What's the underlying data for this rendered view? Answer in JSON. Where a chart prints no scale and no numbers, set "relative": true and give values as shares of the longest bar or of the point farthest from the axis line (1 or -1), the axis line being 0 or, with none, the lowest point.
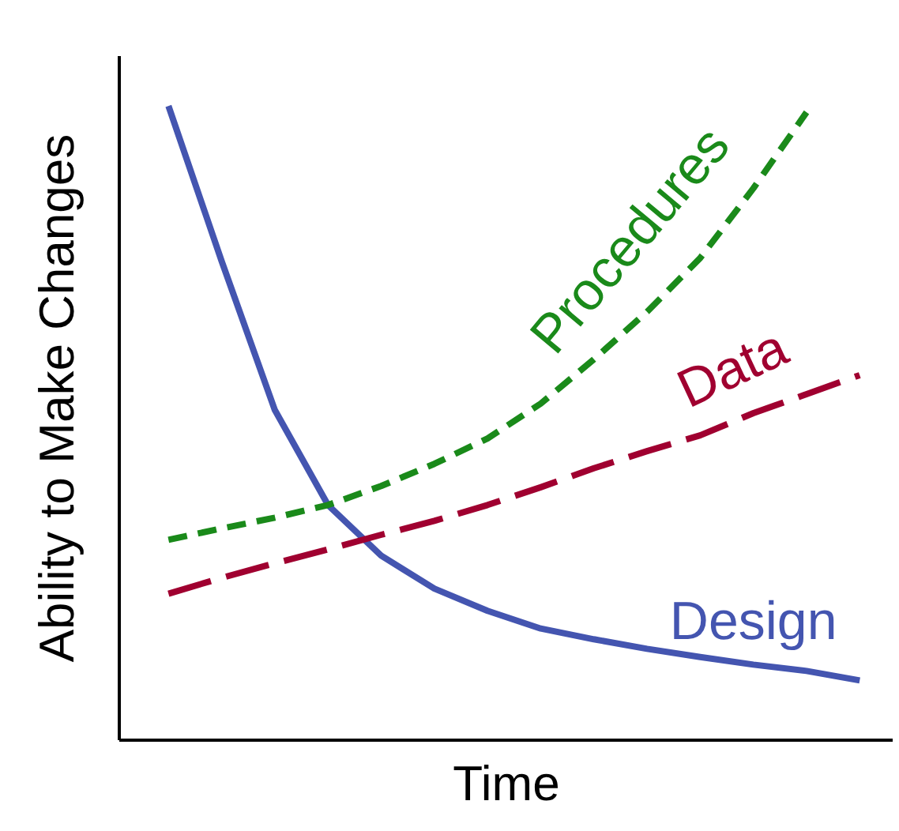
{
  "chart_data": {
    "type": "line",
    "relative": true,
    "xlabel": "Time",
    "ylabel": "Ability to Make Changes",
    "tick_labels": false,
    "grid": false,
    "marker": "none",
    "categories": [
      null,
      null,
      null,
      null,
      null,
      null,
      null,
      null,
      null,
      null,
      null,
      null,
      null,
      null
    ],
    "series": [
      {
        "name": "Design",
        "color": "#4455b0",
        "line_style": "solid",
        "values": [
          1.0,
          0.755,
          0.52,
          0.37,
          0.29,
          0.238,
          0.203,
          0.175,
          0.158,
          0.143,
          0.13,
          0.118,
          0.108,
          0.093
        ]
      },
      {
        "name": "Data",
        "color": "#a00030",
        "line_style": "dashed",
        "values": [
          0.23,
          0.255,
          0.278,
          0.3,
          0.323,
          0.345,
          0.37,
          0.398,
          0.428,
          0.455,
          0.48,
          0.515,
          0.545,
          0.575
        ]
      },
      {
        "name": "Procedures",
        "color": "#1a8a1a",
        "line_style": "dashed",
        "values": [
          0.315,
          0.333,
          0.35,
          0.37,
          0.4,
          0.435,
          0.475,
          0.53,
          0.6,
          0.675,
          0.76,
          0.87,
          0.99,
          null
        ]
      }
    ]
  }
}
